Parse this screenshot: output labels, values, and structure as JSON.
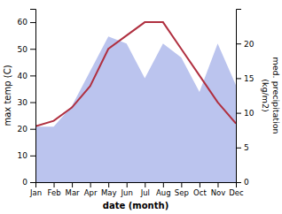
{
  "chart_data": {
    "type": "line",
    "categories": [
      "Jan",
      "Feb",
      "Mar",
      "Apr",
      "May",
      "Jun",
      "Jul",
      "Aug",
      "Sep",
      "Oct",
      "Nov",
      "Dec"
    ],
    "series": [
      {
        "type": "area",
        "axis": "y2",
        "color": "#bbc4ee",
        "values": [
          8,
          8,
          11,
          16,
          21,
          20,
          15,
          20,
          18,
          13,
          20,
          14
        ]
      },
      {
        "type": "line",
        "color": "#b03040",
        "values": [
          21,
          23,
          28,
          36,
          50,
          55,
          60,
          60,
          50,
          40,
          30,
          22
        ]
      }
    ],
    "xlabel": "date (month)",
    "ylabel": "max temp (C)",
    "y2label": "med. precipitation\n(kg/m2)",
    "ylim": [
      0,
      65
    ],
    "yticks": [
      0,
      10,
      20,
      30,
      40,
      50,
      60
    ],
    "y2lim": [
      0,
      25
    ],
    "y2ticks": [
      0,
      5,
      10,
      15,
      20
    ],
    "grid": false
  }
}
